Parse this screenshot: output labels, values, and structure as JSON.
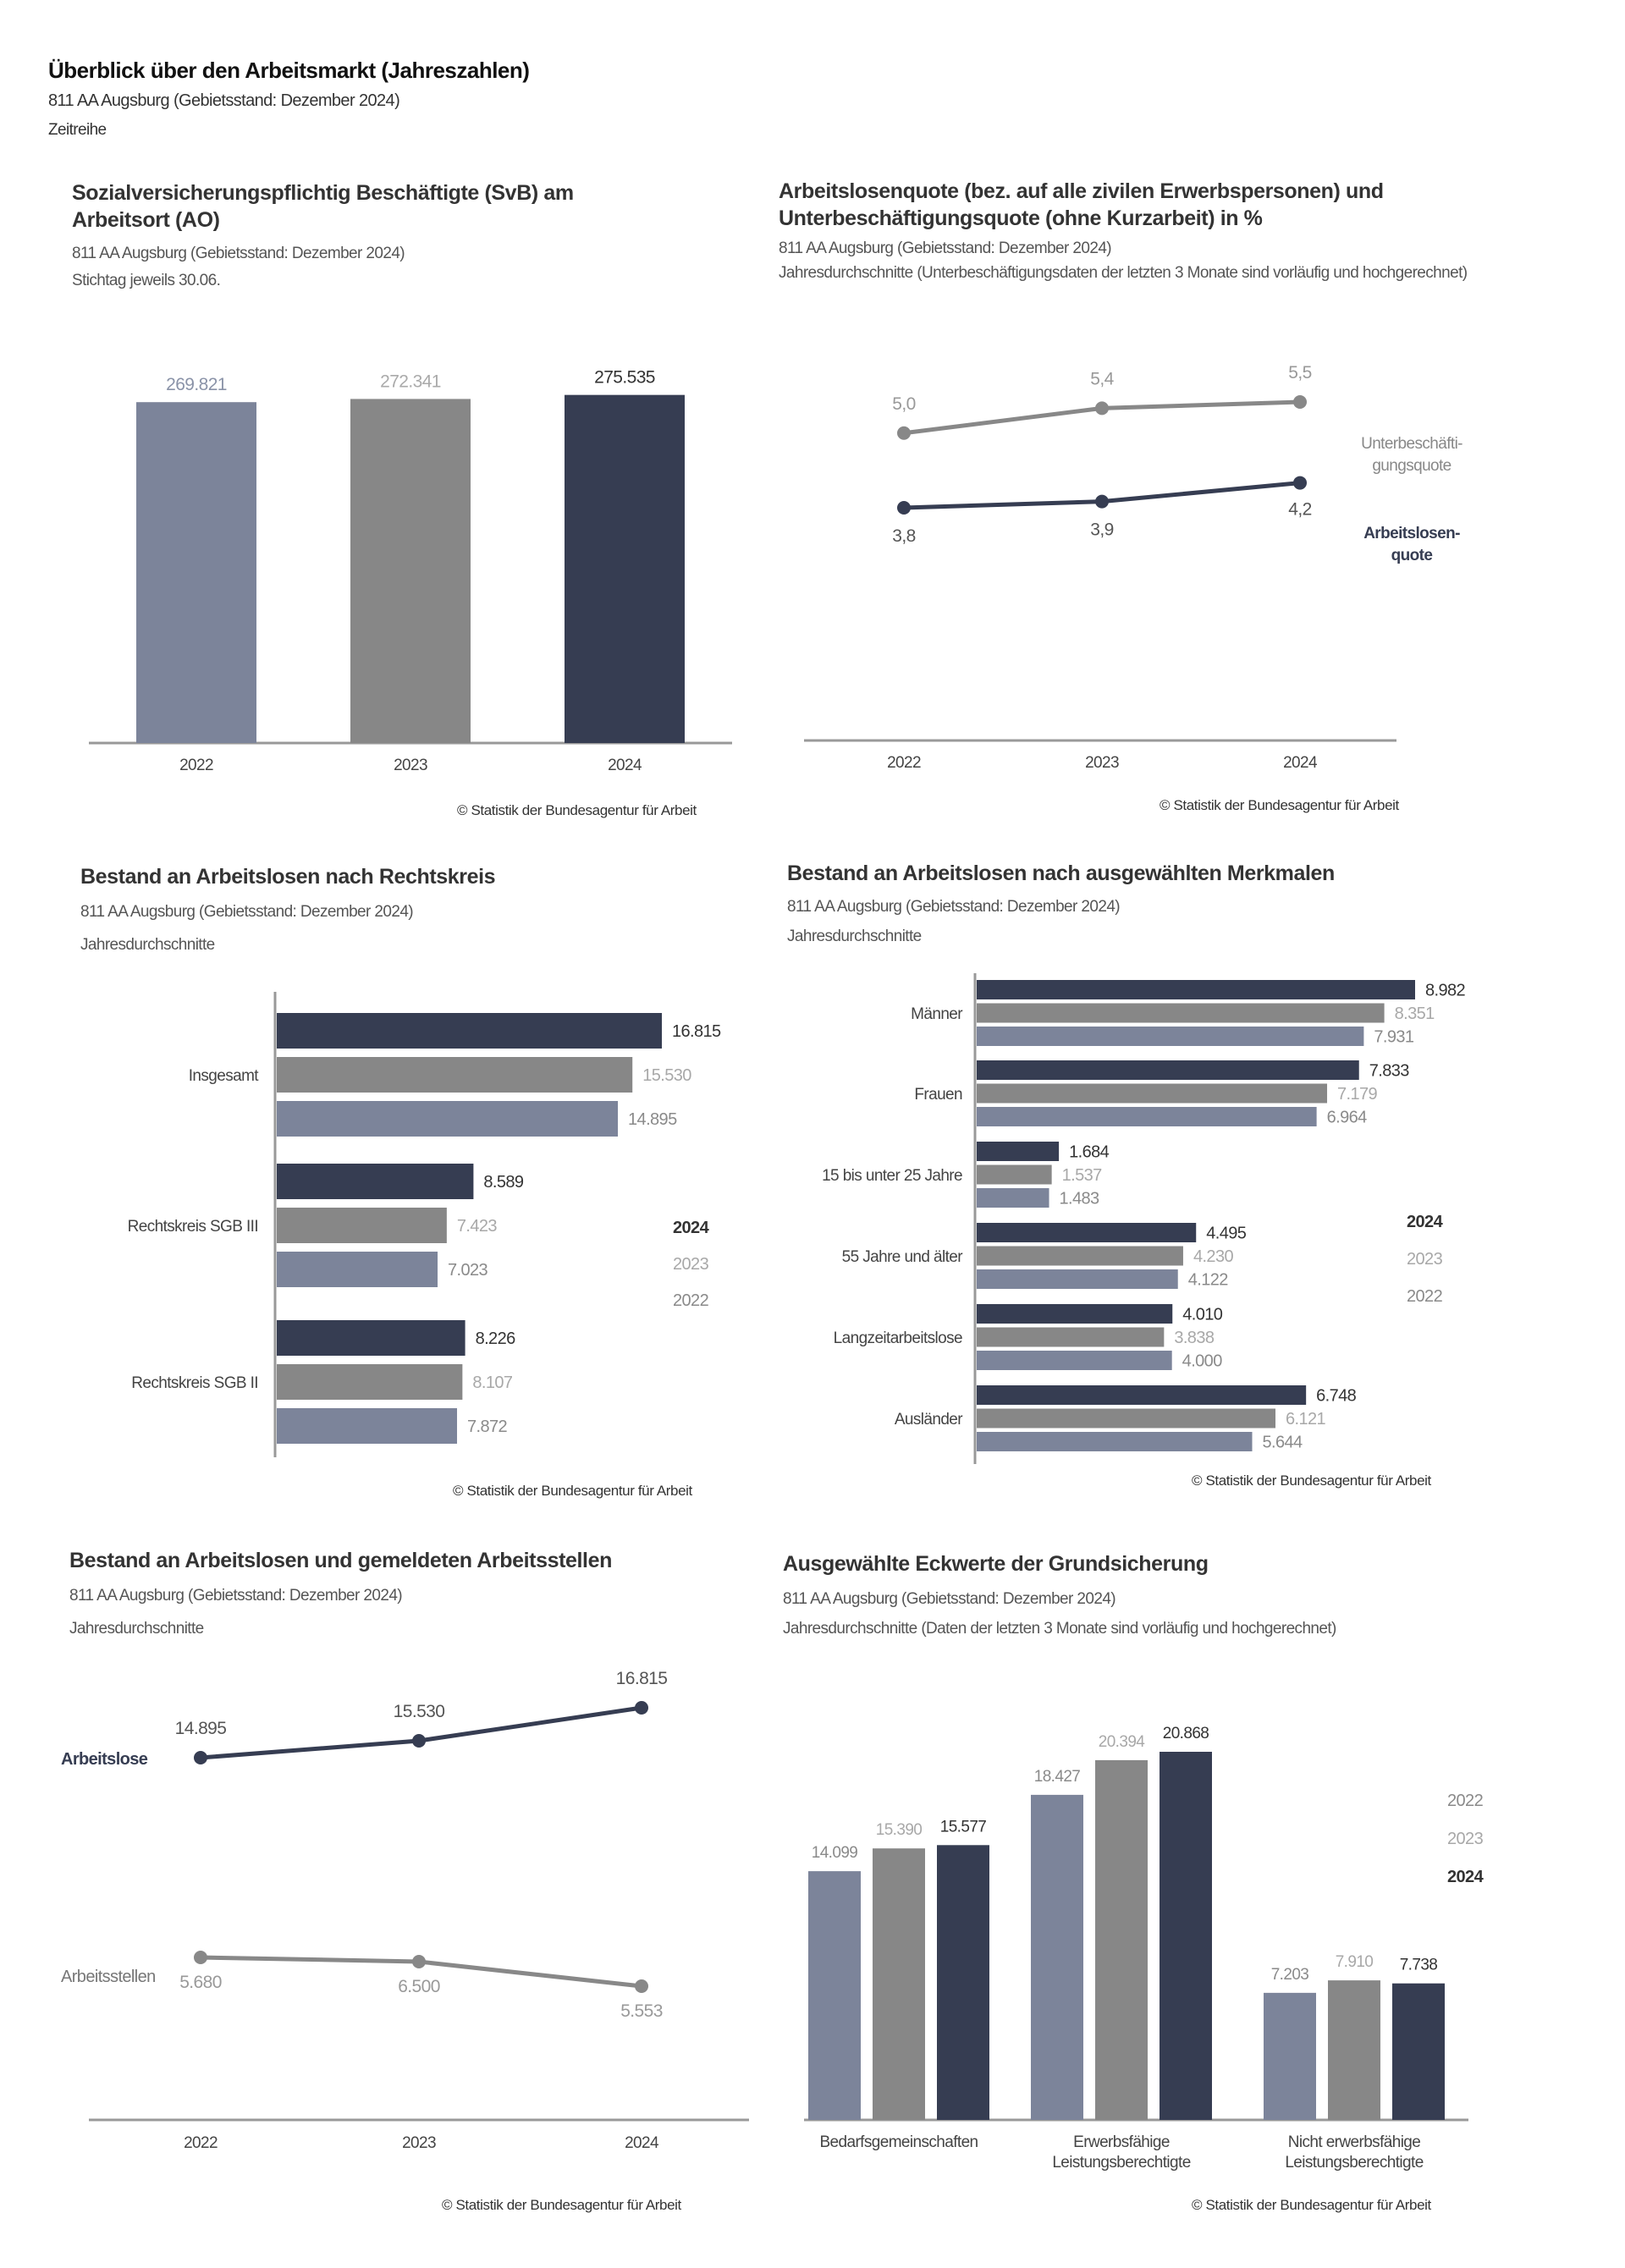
{
  "header": {
    "title": "Überblick über den Arbeitsmarkt (Jahreszahlen)",
    "region": "811 AA Augsburg (Gebietsstand: Dezember 2024)",
    "type": "Zeitreihe"
  },
  "copyright": "© Statistik der Bundesagentur für Arbeit",
  "colors": {
    "y2022": "#7c849a",
    "y2023": "#878787",
    "y2024": "#363d52"
  },
  "chart_data": [
    {
      "type": "bar",
      "title": "Sozialversicherungspflichtig Beschäftigte (SvB) am Arbeitsort (AO)",
      "subtitle": "811 AA Augsburg (Gebietsstand: Dezember 2024)",
      "note": "Stichtag jeweils 30.06.",
      "categories": [
        "2022",
        "2023",
        "2024"
      ],
      "values": [
        269821,
        272341,
        275535
      ],
      "labels": [
        "269.821",
        "272.341",
        "275.535"
      ]
    },
    {
      "type": "line",
      "title": "Arbeitslosenquote (bez. auf alle zivilen Erwerbspersonen) und Unterbeschäftigungsquote (ohne Kurzarbeit) in %",
      "subtitle": "811 AA Augsburg (Gebietsstand: Dezember 2024)",
      "note": "Jahresdurchschnitte (Unterbeschäftigungsdaten der letzten 3 Monate sind vorläufig und hochgerechnet)",
      "x": [
        "2022",
        "2023",
        "2024"
      ],
      "series": [
        {
          "name": "Unterbeschäfti-gungsquote",
          "name_lines": [
            "Unterbeschäfti-",
            "gungsquote"
          ],
          "values": [
            5.0,
            5.4,
            5.5
          ],
          "labels": [
            "5,0",
            "5,4",
            "5,5"
          ]
        },
        {
          "name": "Arbeitslosen-quote",
          "name_lines": [
            "Arbeitslosen-",
            "quote"
          ],
          "values": [
            3.8,
            3.9,
            4.2
          ],
          "labels": [
            "3,8",
            "3,9",
            "4,2"
          ]
        }
      ]
    },
    {
      "type": "bar",
      "orientation": "horizontal",
      "title": "Bestand an Arbeitslosen nach Rechtskreis",
      "subtitle": "811 AA Augsburg (Gebietsstand: Dezember 2024)",
      "note": "Jahresdurchschnitte",
      "categories": [
        "Insgesamt",
        "Rechtskreis SGB III",
        "Rechtskreis SGB II"
      ],
      "legend": [
        "2024",
        "2023",
        "2022"
      ],
      "legend_position": "right",
      "series": [
        {
          "name": "2024",
          "values": [
            16815,
            8589,
            8226
          ],
          "labels": [
            "16.815",
            "8.589",
            "8.226"
          ]
        },
        {
          "name": "2023",
          "values": [
            15530,
            7423,
            8107
          ],
          "labels": [
            "15.530",
            "7.423",
            "8.107"
          ]
        },
        {
          "name": "2022",
          "values": [
            14895,
            7023,
            7872
          ],
          "labels": [
            "14.895",
            "7.023",
            "7.872"
          ]
        }
      ]
    },
    {
      "type": "bar",
      "orientation": "horizontal",
      "title": "Bestand an Arbeitslosen nach ausgewählten Merkmalen",
      "subtitle": "811 AA Augsburg (Gebietsstand: Dezember 2024)",
      "note": "Jahresdurchschnitte",
      "categories": [
        "Männer",
        "Frauen",
        "15 bis unter 25 Jahre",
        "55 Jahre und älter",
        "Langzeitarbeitslose",
        "Ausländer"
      ],
      "legend": [
        "2024",
        "2023",
        "2022"
      ],
      "legend_position": "right",
      "series": [
        {
          "name": "2024",
          "values": [
            8982,
            7833,
            1684,
            4495,
            4010,
            6748
          ],
          "labels": [
            "8.982",
            "7.833",
            "1.684",
            "4.495",
            "4.010",
            "6.748"
          ]
        },
        {
          "name": "2023",
          "values": [
            8351,
            7179,
            1537,
            4230,
            3838,
            6121
          ],
          "labels": [
            "8.351",
            "7.179",
            "1.537",
            "4.230",
            "3.838",
            "6.121"
          ]
        },
        {
          "name": "2022",
          "values": [
            7931,
            6964,
            1483,
            4122,
            4000,
            5644
          ],
          "labels": [
            "7.931",
            "6.964",
            "1.483",
            "4.122",
            "4.000",
            "5.644"
          ]
        }
      ]
    },
    {
      "type": "line",
      "title": "Bestand an Arbeitslosen und gemeldeten Arbeitsstellen",
      "subtitle": "811 AA Augsburg (Gebietsstand: Dezember 2024)",
      "note": "Jahresdurchschnitte",
      "x": [
        "2022",
        "2023",
        "2024"
      ],
      "series": [
        {
          "name": "Arbeitslose",
          "values": [
            14895,
            15530,
            16815
          ],
          "labels": [
            "14.895",
            "15.530",
            "16.815"
          ]
        },
        {
          "name": "Arbeitsstellen",
          "values": [
            5680,
            6500,
            5553
          ],
          "labels": [
            "5.680",
            "6.500",
            "5.553"
          ]
        }
      ]
    },
    {
      "type": "bar",
      "title": "Ausgewählte Eckwerte der Grundsicherung",
      "subtitle": "811 AA Augsburg (Gebietsstand: Dezember 2024)",
      "note": "Jahresdurchschnitte (Daten der letzten 3 Monate sind vorläufig und hochgerechnet)",
      "categories": [
        "Bedarfsgemeinschaften",
        "Erwerbsfähige Leistungsberechtigte",
        "Nicht erwerbsfähige Leistungsberechtigte"
      ],
      "category_lines": [
        [
          "Bedarfsgemeinschaften"
        ],
        [
          "Erwerbsfähige",
          "Leistungsberechtigte"
        ],
        [
          "Nicht erwerbsfähige",
          "Leistungsberechtigte"
        ]
      ],
      "legend": [
        "2022",
        "2023",
        "2024"
      ],
      "legend_position": "right",
      "series": [
        {
          "name": "2022",
          "values": [
            14099,
            18427,
            7203
          ],
          "labels": [
            "14.099",
            "18.427",
            "7.203"
          ]
        },
        {
          "name": "2023",
          "values": [
            15390,
            20394,
            7910
          ],
          "labels": [
            "15.390",
            "20.394",
            "7.910"
          ]
        },
        {
          "name": "2024",
          "values": [
            15577,
            20868,
            7738
          ],
          "labels": [
            "15.577",
            "20.868",
            "7.738"
          ]
        }
      ]
    }
  ]
}
